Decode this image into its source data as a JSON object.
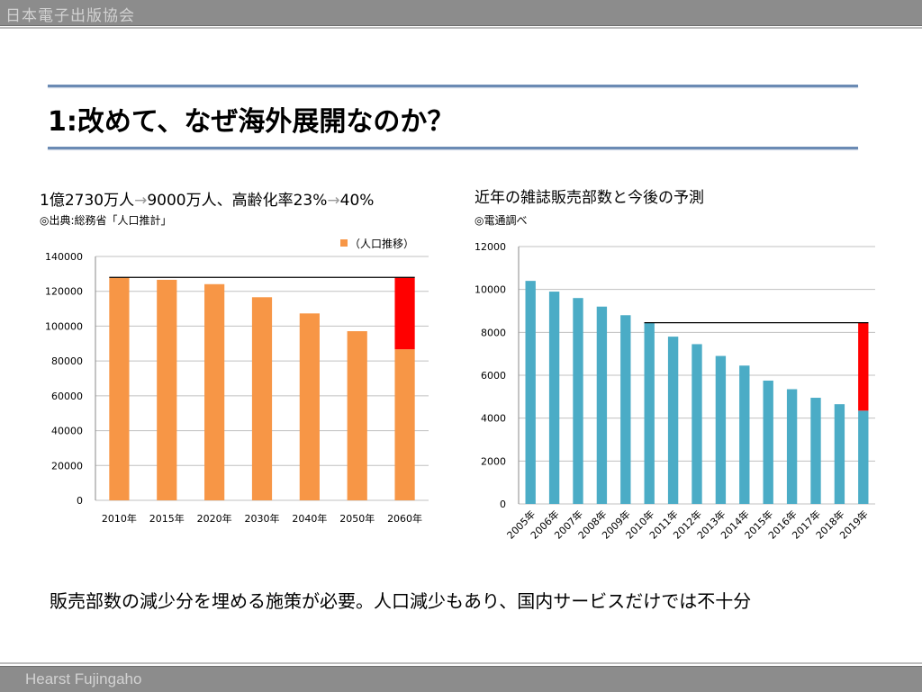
{
  "header": {
    "org": "日本電子出版協会"
  },
  "slide": {
    "title": "1:改めて、なぜ海外展開なのか？",
    "left": {
      "subtitle_a": "1億2730万人",
      "arrow_1": "→",
      "subtitle_b": "9000万人、高齢化率23%",
      "arrow_2": "→",
      "subtitle_c": "40%",
      "source": "◎出典:総務省「人口推計」"
    },
    "right": {
      "subtitle": "近年の雑誌販売部数と今後の予測",
      "source": "◎電通調べ"
    },
    "conclusion": "販売部数の減少分を埋める施策が必要。人口減少もあり、国内サービスだけでは不十分"
  },
  "footer": {
    "company": "Hearst Fujingaho"
  },
  "colors": {
    "population_bar": "#f79646",
    "magazine_bar": "#4bacc6",
    "decline_highlight": "#ff0000",
    "rule": "#6b8bb4",
    "header_bar": "#8c8c8c"
  },
  "chart_data": [
    {
      "type": "bar",
      "categories": [
        "2010年",
        "2015年",
        "2020年",
        "2030年",
        "2040年",
        "2050年",
        "2060年"
      ],
      "series": [
        {
          "name": "（人口推移）",
          "values": [
            128000,
            126600,
            124100,
            116600,
            107300,
            97100,
            86700
          ]
        }
      ],
      "highlight": {
        "category": "2060年",
        "from": 86700,
        "to": 128000,
        "reference_line": 128000,
        "color": "#ff0000"
      },
      "yticks": [
        0,
        20000,
        40000,
        60000,
        80000,
        100000,
        120000,
        140000
      ],
      "ylim": [
        0,
        140000
      ],
      "grid": true,
      "legend": "top-right"
    },
    {
      "type": "bar",
      "categories": [
        "2005年",
        "2006年",
        "2007年",
        "2008年",
        "2009年",
        "2010年",
        "2011年",
        "2012年",
        "2013年",
        "2014年",
        "2015年",
        "2016年",
        "2017年",
        "2018年",
        "2019年"
      ],
      "series": [
        {
          "values": [
            10400,
            9900,
            9600,
            9200,
            8800,
            8450,
            7800,
            7450,
            6900,
            6450,
            5750,
            5350,
            4950,
            4650,
            4350
          ]
        }
      ],
      "highlight": {
        "category": "2019年",
        "from": 4350,
        "to": 8450,
        "reference_line": 8450,
        "reference_from": "2010年",
        "color": "#ff0000"
      },
      "yticks": [
        0,
        2000,
        4000,
        6000,
        8000,
        10000,
        12000
      ],
      "ylim": [
        0,
        12000
      ],
      "grid": true,
      "legend": "none"
    }
  ]
}
